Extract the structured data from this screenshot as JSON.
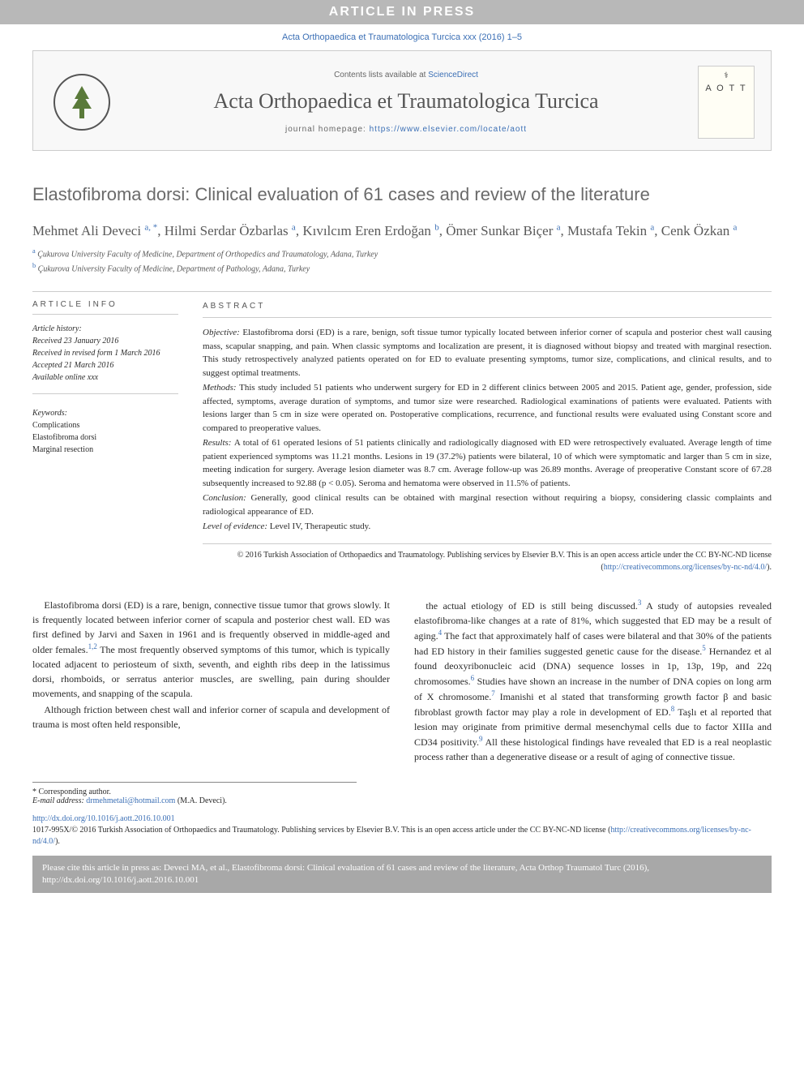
{
  "banner": "ARTICLE IN PRESS",
  "journal_ref": "Acta Orthopaedica et Traumatologica Turcica xxx (2016) 1–5",
  "header": {
    "contents_prefix": "Contents lists available at ",
    "contents_link": "ScienceDirect",
    "journal_title": "Acta Orthopaedica et Traumatologica Turcica",
    "homepage_prefix": "journal homepage: ",
    "homepage_url": "https://www.elsevier.com/locate/aott",
    "aott_label": "A O T T"
  },
  "article_title": "Elastofibroma dorsi: Clinical evaluation of 61 cases and review of the literature",
  "authors_html": "Mehmet Ali Deveci <sup>a, *</sup>, Hilmi Serdar Özbarlas <sup>a</sup>, Kıvılcım Eren Erdoğan <sup>b</sup>, Ömer Sunkar Biçer <sup>a</sup>, Mustafa Tekin <sup>a</sup>, Cenk Özkan <sup>a</sup>",
  "affiliations": {
    "a": "Çukurova University Faculty of Medicine, Department of Orthopedics and Traumatology, Adana, Turkey",
    "b": "Çukurova University Faculty of Medicine, Department of Pathology, Adana, Turkey"
  },
  "article_info": {
    "heading": "ARTICLE INFO",
    "history_label": "Article history:",
    "history": [
      "Received 23 January 2016",
      "Received in revised form 1 March 2016",
      "Accepted 21 March 2016",
      "Available online xxx"
    ],
    "keywords_label": "Keywords:",
    "keywords": [
      "Complications",
      "Elastofibroma dorsi",
      "Marginal resection"
    ]
  },
  "abstract": {
    "heading": "ABSTRACT",
    "sections": [
      {
        "label": "Objective:",
        "text": "Elastofibroma dorsi (ED) is a rare, benign, soft tissue tumor typically located between inferior corner of scapula and posterior chest wall causing mass, scapular snapping, and pain. When classic symptoms and localization are present, it is diagnosed without biopsy and treated with marginal resection. This study retrospectively analyzed patients operated on for ED to evaluate presenting symptoms, tumor size, complications, and clinical results, and to suggest optimal treatments."
      },
      {
        "label": "Methods:",
        "text": "This study included 51 patients who underwent surgery for ED in 2 different clinics between 2005 and 2015. Patient age, gender, profession, side affected, symptoms, average duration of symptoms, and tumor size were researched. Radiological examinations of patients were evaluated. Patients with lesions larger than 5 cm in size were operated on. Postoperative complications, recurrence, and functional results were evaluated using Constant score and compared to preoperative values."
      },
      {
        "label": "Results:",
        "text": "A total of 61 operated lesions of 51 patients clinically and radiologically diagnosed with ED were retrospectively evaluated. Average length of time patient experienced symptoms was 11.21 months. Lesions in 19 (37.2%) patients were bilateral, 10 of which were symptomatic and larger than 5 cm in size, meeting indication for surgery. Average lesion diameter was 8.7 cm. Average follow-up was 26.89 months. Average of preoperative Constant score of 67.28 subsequently increased to 92.88 (p < 0.05). Seroma and hematoma were observed in 11.5% of patients."
      },
      {
        "label": "Conclusion:",
        "text": "Generally, good clinical results can be obtained with marginal resection without requiring a biopsy, considering classic complaints and radiological appearance of ED."
      },
      {
        "label": "Level of evidence:",
        "text": "Level IV, Therapeutic study."
      }
    ],
    "copyright": "© 2016 Turkish Association of Orthopaedics and Traumatology. Publishing services by Elsevier B.V. This is an open access article under the CC BY-NC-ND license (",
    "license_url": "http://creativecommons.org/licenses/by-nc-nd/4.0/",
    "copyright_suffix": ")."
  },
  "body": {
    "col1": [
      "Elastofibroma dorsi (ED) is a rare, benign, connective tissue tumor that grows slowly. It is frequently located between inferior corner of scapula and posterior chest wall. ED was first defined by Jarvi and Saxen in 1961 and is frequently observed in middle-aged and older females.<sup>1,2</sup> The most frequently observed symptoms of this tumor, which is typically located adjacent to periosteum of sixth, seventh, and eighth ribs deep in the latissimus dorsi, rhomboids, or serratus anterior muscles, are swelling, pain during shoulder movements, and snapping of the scapula.",
      "Although friction between chest wall and inferior corner of scapula and development of trauma is most often held responsible,"
    ],
    "col2": [
      "the actual etiology of ED is still being discussed.<sup>3</sup> A study of autopsies revealed elastofibroma-like changes at a rate of 81%, which suggested that ED may be a result of aging.<sup>4</sup> The fact that approximately half of cases were bilateral and that 30% of the patients had ED history in their families suggested genetic cause for the disease.<sup>5</sup> Hernandez et al found deoxyribonucleic acid (DNA) sequence losses in 1p, 13p, 19p, and 22q chromosomes.<sup>6</sup> Studies have shown an increase in the number of DNA copies on long arm of X chromosome.<sup>7</sup> Imanishi et al stated that transforming growth factor β and basic fibroblast growth factor may play a role in development of ED.<sup>8</sup> Taşlı et al reported that lesion may originate from primitive dermal mesenchymal cells due to factor XIIIa and CD34 positivity.<sup>9</sup> All these histological findings have revealed that ED is a real neoplastic process rather than a degenerative disease or a result of aging of connective tissue."
    ]
  },
  "footnotes": {
    "corresponding": "* Corresponding author.",
    "email_label": "E-mail address:",
    "email": "drmehmetali@hotmail.com",
    "email_author": "(M.A. Deveci)."
  },
  "doi": {
    "url": "http://dx.doi.org/10.1016/j.aott.2016.10.001",
    "issn_line": "1017-995X/© 2016 Turkish Association of Orthopaedics and Traumatology. Publishing services by Elsevier B.V. This is an open access article under the CC BY-NC-ND license (",
    "license_url": "http://creativecommons.org/licenses/by-nc-nd/4.0/",
    "suffix": ")."
  },
  "cite_box": "Please cite this article in press as: Deveci MA, et al., Elastofibroma dorsi: Clinical evaluation of 61 cases and review of the literature, Acta Orthop Traumatol Turc (2016), http://dx.doi.org/10.1016/j.aott.2016.10.001"
}
